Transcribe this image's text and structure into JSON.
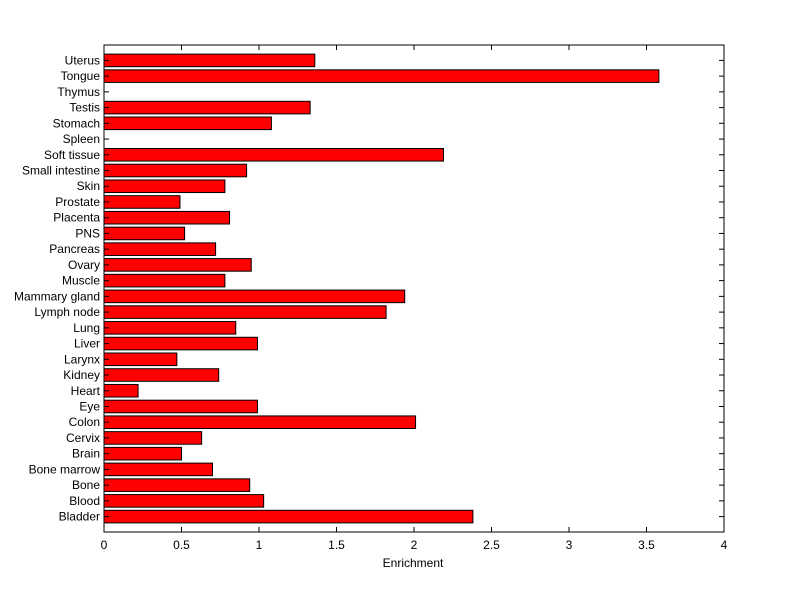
{
  "chart_data": {
    "type": "bar",
    "orientation": "horizontal",
    "xlabel": "Enrichment",
    "xlim": [
      0,
      4
    ],
    "xticks": [
      0,
      0.5,
      1,
      1.5,
      2,
      2.5,
      3,
      3.5,
      4
    ],
    "xtick_labels": [
      "0",
      "0.5",
      "1",
      "1.5",
      "2",
      "2.5",
      "3",
      "3.5",
      "4"
    ],
    "grid": false,
    "legend": "none",
    "bar_color": "#ff0000",
    "bar_edge_color": "#000000",
    "categories": [
      "Bladder",
      "Blood",
      "Bone",
      "Bone marrow",
      "Brain",
      "Cervix",
      "Colon",
      "Eye",
      "Heart",
      "Kidney",
      "Larynx",
      "Liver",
      "Lung",
      "Lymph node",
      "Mammary gland",
      "Muscle",
      "Ovary",
      "Pancreas",
      "PNS",
      "Placenta",
      "Prostate",
      "Skin",
      "Small intestine",
      "Soft tissue",
      "Spleen",
      "Stomach",
      "Testis",
      "Thymus",
      "Tongue",
      "Uterus"
    ],
    "values": [
      2.38,
      1.03,
      0.94,
      0.7,
      0.5,
      0.63,
      2.01,
      0.99,
      0.22,
      0.74,
      0.47,
      0.99,
      0.85,
      1.82,
      1.94,
      0.78,
      0.95,
      0.72,
      0.52,
      0.81,
      0.49,
      0.78,
      0.92,
      2.19,
      0,
      1.08,
      1.33,
      0,
      3.58,
      1.36
    ]
  }
}
